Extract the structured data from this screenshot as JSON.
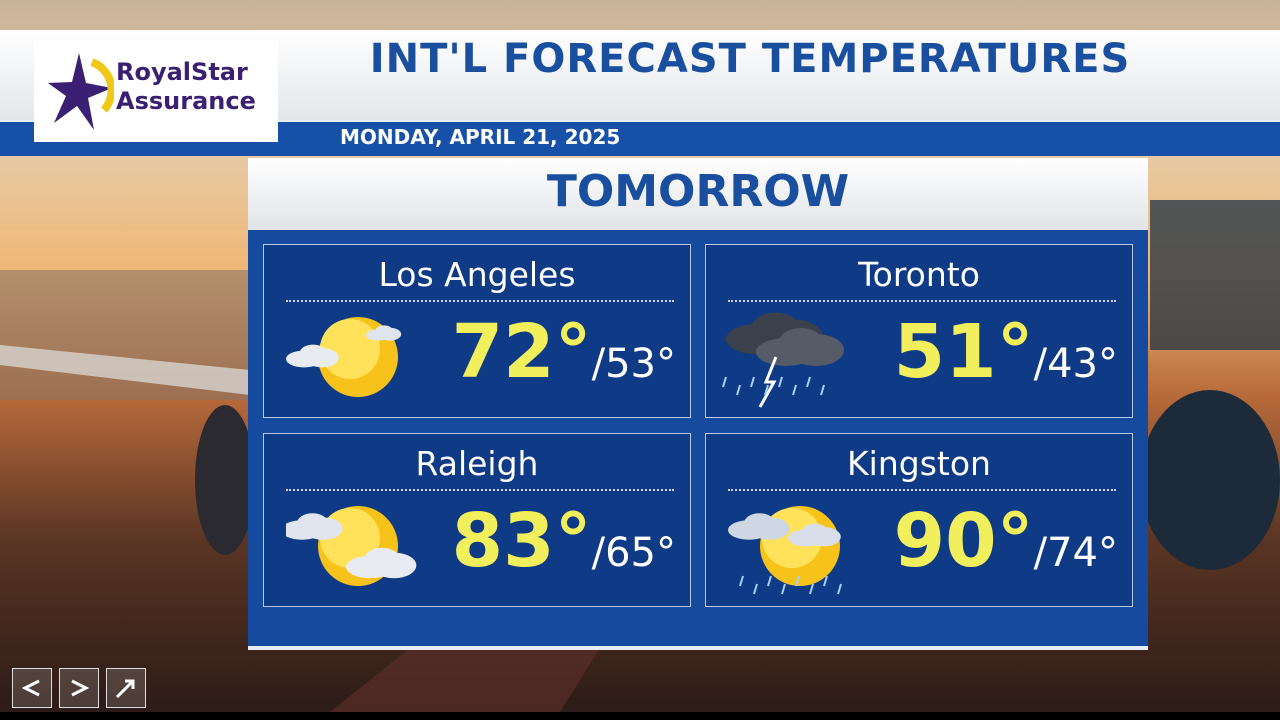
{
  "header": {
    "logo": [
      "RoyalStar",
      "Assurance"
    ],
    "title": "INT'L FORECAST TEMPERATURES",
    "date": "MONDAY, APRIL 21, 2025"
  },
  "panel": {
    "heading": "TOMORROW",
    "cities": [
      {
        "name": "Los Angeles",
        "high": "72°",
        "low": "/53°"
      },
      {
        "name": "Toronto",
        "high": "51°",
        "low": "/43°"
      },
      {
        "name": "Raleigh",
        "high": "83°",
        "low": "/65°"
      },
      {
        "name": "Kingston",
        "high": "90°",
        "low": "/74°"
      }
    ]
  }
}
